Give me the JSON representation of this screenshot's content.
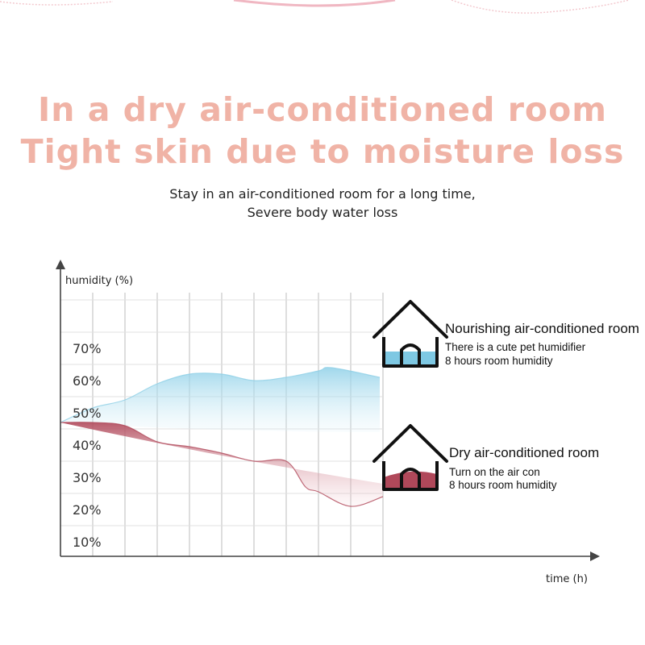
{
  "headline": {
    "line1": "In a dry air-conditioned room",
    "line2": "Tight skin due to moisture loss"
  },
  "subtitle": {
    "line1": "Stay in an air-conditioned room for a long time,",
    "line2": "Severe body water loss"
  },
  "chart_data": {
    "type": "area",
    "title": "",
    "ylabel": "humidity (%)",
    "xlabel": "time (h)",
    "yticks": [
      "10%",
      "20%",
      "30%",
      "40%",
      "50%",
      "60%",
      "70%"
    ],
    "ylim": [
      5,
      80
    ],
    "xlim": [
      0,
      10
    ],
    "grid": true,
    "series": [
      {
        "name": "Nourishing air-conditioned room",
        "color": "#8ecfe6",
        "x": [
          0,
          1,
          2,
          3,
          4,
          5,
          6,
          7,
          8,
          8.4,
          9.9
        ],
        "values": [
          47,
          51.5,
          54,
          59,
          62,
          62,
          60,
          61,
          63,
          64,
          61
        ]
      },
      {
        "name": "Dry air-conditioned room",
        "color": "#b0485a",
        "x": [
          0,
          1,
          2,
          3,
          4,
          5,
          6,
          7,
          7.6,
          8,
          9,
          10
        ],
        "values": [
          47,
          47,
          46,
          41,
          39.5,
          37.5,
          35,
          35,
          27,
          25.5,
          21,
          24
        ]
      }
    ],
    "legend_placement": "right"
  },
  "legend": {
    "nourishing": {
      "title": "Nourishing air-conditioned room",
      "line1": "There is a cute pet humidifier",
      "line2": "8 hours room humidity",
      "icon": "house-icon",
      "fill_color": "#7ec8e3"
    },
    "dry": {
      "title": "Dry air-conditioned room",
      "line1": "Turn on the air con",
      "line2": "8 hours room humidity",
      "icon": "house-icon",
      "fill_color": "#b0485a"
    }
  }
}
